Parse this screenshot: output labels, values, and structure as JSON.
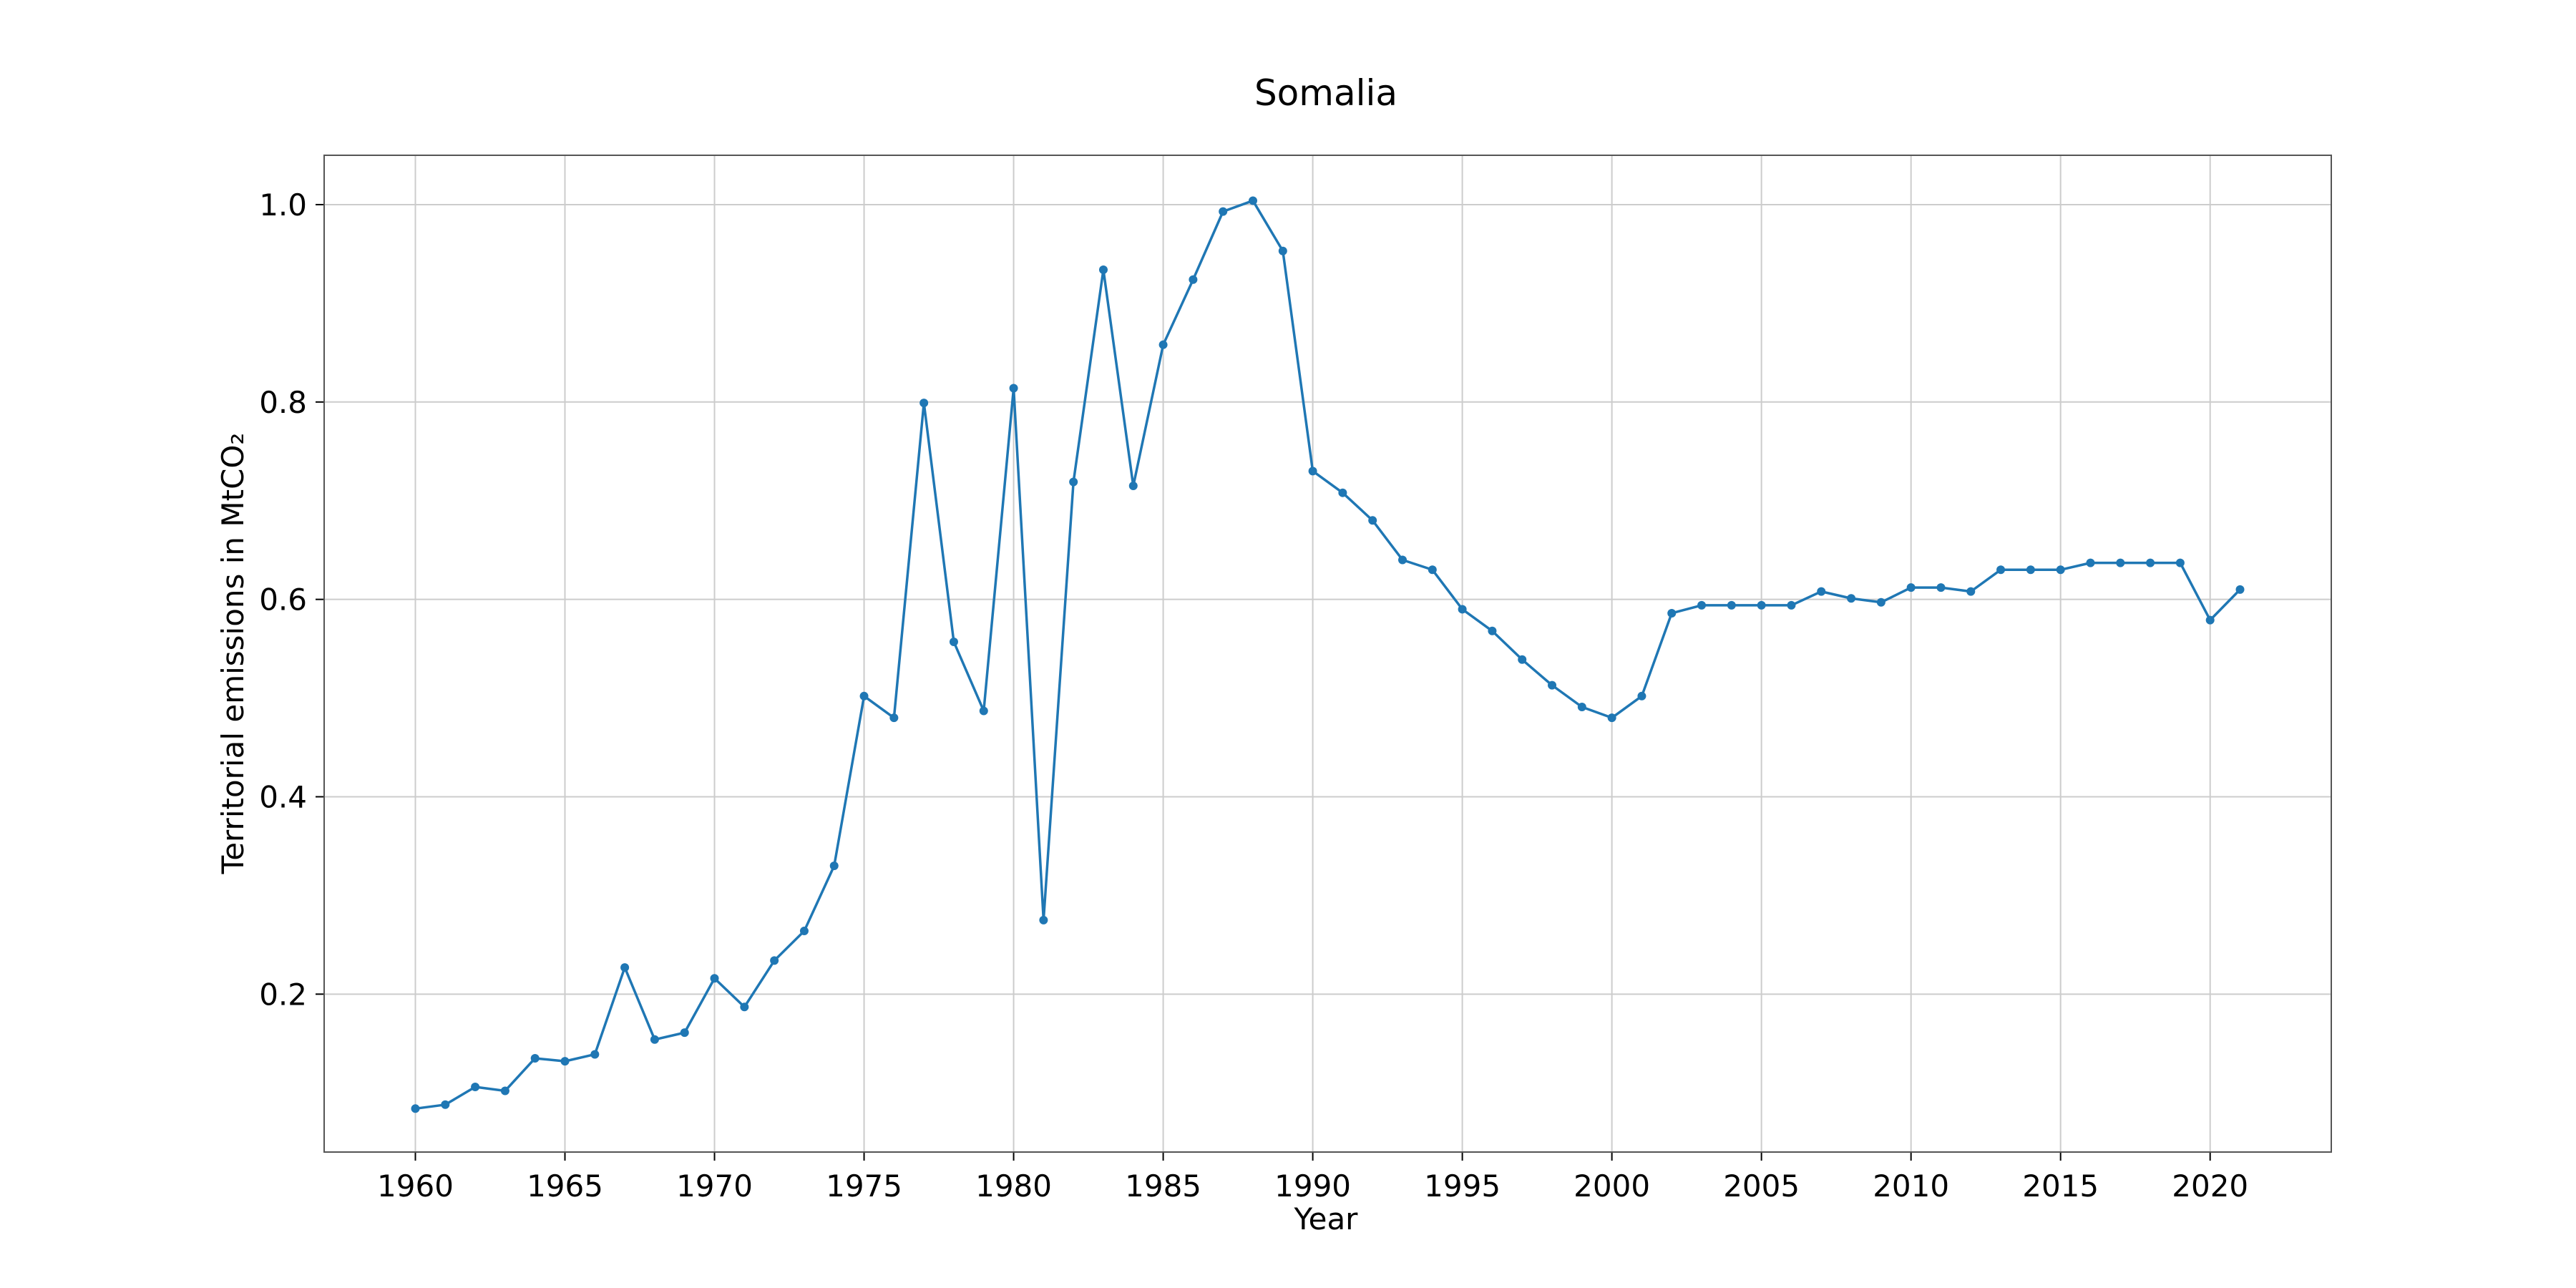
{
  "chart_data": {
    "type": "line",
    "title": "Somalia",
    "xlabel": "Year",
    "ylabel": "Territorial emissions in MtCO₂",
    "xlim": [
      1956.95,
      2024.05
    ],
    "ylim": [
      0.04,
      1.05
    ],
    "grid": true,
    "series_color": "#1f77b4",
    "xticks": [
      1960,
      1965,
      1970,
      1975,
      1980,
      1985,
      1990,
      1995,
      2000,
      2005,
      2010,
      2015,
      2020
    ],
    "yticks": [
      0.2,
      0.4,
      0.6,
      0.8,
      1.0
    ],
    "ytick_labels": [
      "0.2",
      "0.4",
      "0.6",
      "0.8",
      "1.0"
    ],
    "series": [
      {
        "name": "Somalia",
        "x": [
          1960,
          1961,
          1962,
          1963,
          1964,
          1965,
          1966,
          1967,
          1968,
          1969,
          1970,
          1971,
          1972,
          1973,
          1974,
          1975,
          1976,
          1977,
          1978,
          1979,
          1980,
          1981,
          1982,
          1983,
          1984,
          1985,
          1986,
          1987,
          1988,
          1989,
          1990,
          1991,
          1992,
          1993,
          1994,
          1995,
          1996,
          1997,
          1998,
          1999,
          2000,
          2001,
          2002,
          2003,
          2004,
          2005,
          2006,
          2007,
          2008,
          2009,
          2010,
          2011,
          2012,
          2013,
          2014,
          2015,
          2016,
          2017,
          2018,
          2019,
          2020,
          2021
        ],
        "values": [
          0.084,
          0.088,
          0.106,
          0.102,
          0.135,
          0.132,
          0.139,
          0.227,
          0.154,
          0.161,
          0.216,
          0.187,
          0.234,
          0.264,
          0.33,
          0.502,
          0.48,
          0.799,
          0.557,
          0.487,
          0.814,
          0.275,
          0.719,
          0.934,
          0.715,
          0.858,
          0.924,
          0.993,
          1.004,
          0.953,
          0.73,
          0.708,
          0.68,
          0.64,
          0.63,
          0.59,
          0.568,
          0.539,
          0.513,
          0.491,
          0.48,
          0.502,
          0.586,
          0.594,
          0.594,
          0.594,
          0.594,
          0.608,
          0.601,
          0.597,
          0.612,
          0.612,
          0.608,
          0.63,
          0.63,
          0.63,
          0.637,
          0.637,
          0.637,
          0.637,
          0.579,
          0.61
        ]
      }
    ]
  }
}
